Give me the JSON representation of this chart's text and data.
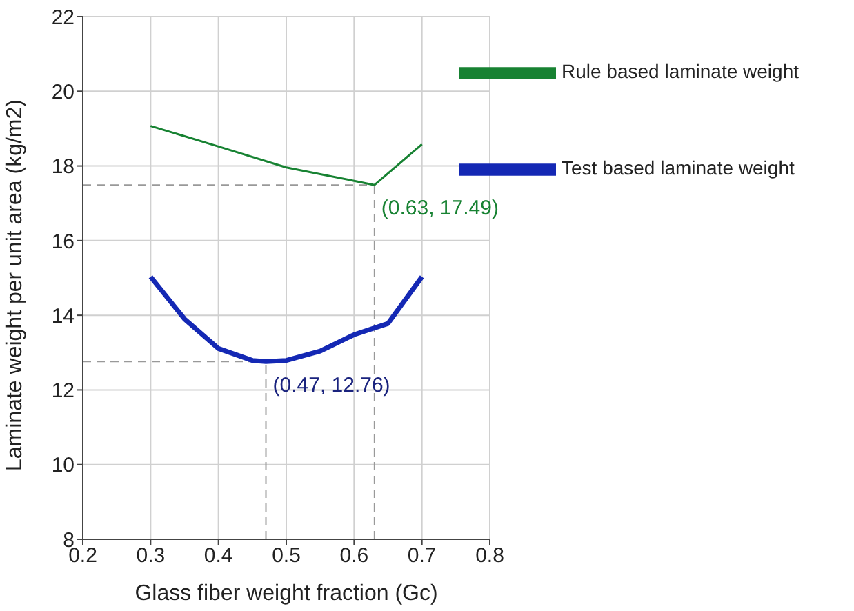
{
  "chart_data": {
    "type": "line",
    "xlabel": "Glass fiber weight fraction (Gc)",
    "ylabel": "Laminate weight per unit area (kg/m2)",
    "xlim": [
      0.2,
      0.8
    ],
    "xticks": [
      0.2,
      0.3,
      0.4,
      0.5,
      0.6,
      0.7,
      0.8
    ],
    "ylim": [
      8,
      22
    ],
    "yticks": [
      8,
      10,
      12,
      14,
      16,
      18,
      20,
      22
    ],
    "grid": true,
    "legend": "top right",
    "marker": "none",
    "line_style": "solid",
    "series": [
      {
        "name": "Rule based laminate weight",
        "color": "#178232",
        "x": [
          0.3,
          0.4,
          0.5,
          0.6,
          0.63,
          0.7
        ],
        "values": [
          19.07,
          18.52,
          17.96,
          17.6,
          17.49,
          18.58
        ]
      },
      {
        "name": "Test based laminate weight",
        "color": "#1428b4",
        "x": [
          0.3,
          0.35,
          0.4,
          0.45,
          0.47,
          0.5,
          0.55,
          0.6,
          0.65,
          0.7
        ],
        "values": [
          15.03,
          13.9,
          13.11,
          12.79,
          12.76,
          12.79,
          13.04,
          13.48,
          13.78,
          15.03
        ]
      }
    ],
    "annotations": [
      {
        "text": "(0.63, 17.49)",
        "x": 0.63,
        "y": 17.49
      },
      {
        "text": "(0.47, 12.76)",
        "x": 0.47,
        "y": 12.76
      }
    ]
  }
}
